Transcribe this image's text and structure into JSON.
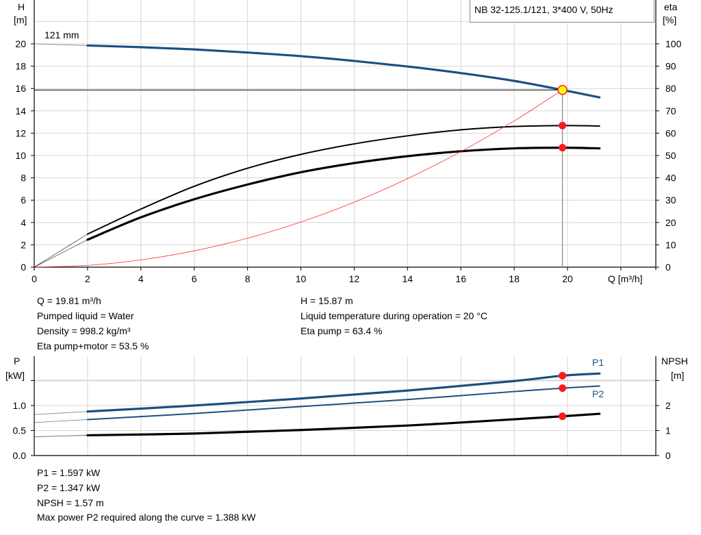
{
  "chart_data": [
    {
      "type": "line",
      "title": "NB 32-125.1/121, 3*400 V, 50Hz",
      "annotation": "121 mm",
      "xlabel": "Q [m³/h]",
      "ylabel": "H",
      "ylabel_unit": "[m]",
      "y2label": "eta",
      "y2label_unit": "[%]",
      "xlim": [
        0,
        23.3
      ],
      "ylim": [
        0,
        24
      ],
      "y2lim": [
        0,
        120
      ],
      "x_ticks": [
        "0",
        "2",
        "4",
        "6",
        "8",
        "10",
        "12",
        "14",
        "16",
        "18",
        "20"
      ],
      "y_ticks": [
        "0",
        "2",
        "4",
        "6",
        "8",
        "10",
        "12",
        "14",
        "16",
        "18",
        "20"
      ],
      "y2_ticks": [
        "0",
        "10",
        "20",
        "30",
        "40",
        "50",
        "60",
        "70",
        "80",
        "90",
        "100"
      ],
      "grid": true,
      "series": [
        {
          "id": "head",
          "axis": "left",
          "color": "#1b4f80",
          "solid_from_q": 2,
          "points": [
            [
              0,
              20.0
            ],
            [
              2,
              19.85
            ],
            [
              4,
              19.7
            ],
            [
              6,
              19.5
            ],
            [
              8,
              19.22
            ],
            [
              10,
              18.9
            ],
            [
              12,
              18.47
            ],
            [
              14,
              17.97
            ],
            [
              16,
              17.38
            ],
            [
              18,
              16.68
            ],
            [
              19.81,
              15.87
            ],
            [
              21.2,
              15.2
            ]
          ]
        },
        {
          "id": "eta-pump",
          "axis": "right",
          "color": "#000000",
          "solid_from_q": 2,
          "points": [
            [
              0,
              0
            ],
            [
              2,
              14.8
            ],
            [
              4,
              26
            ],
            [
              6,
              36.2
            ],
            [
              8,
              44.3
            ],
            [
              10,
              50.5
            ],
            [
              12,
              55.2
            ],
            [
              14,
              58.8
            ],
            [
              16,
              61.5
            ],
            [
              18,
              63.0
            ],
            [
              19.81,
              63.4
            ],
            [
              21.2,
              63.2
            ]
          ]
        },
        {
          "id": "eta-pump-motor",
          "axis": "right",
          "color": "#000000",
          "solid_from_q": 2,
          "thick": true,
          "points": [
            [
              0,
              0
            ],
            [
              2,
              12.3
            ],
            [
              4,
              22.3
            ],
            [
              6,
              30.4
            ],
            [
              8,
              37.0
            ],
            [
              10,
              42.5
            ],
            [
              12,
              46.6
            ],
            [
              14,
              49.7
            ],
            [
              16,
              51.9
            ],
            [
              18,
              53.2
            ],
            [
              19.81,
              53.5
            ],
            [
              21.2,
              53.2
            ]
          ]
        },
        {
          "id": "system-curve",
          "axis": "left",
          "color": "#ff2a2a",
          "points": [
            [
              0,
              0
            ],
            [
              2,
              0.16
            ],
            [
              4,
              0.65
            ],
            [
              6,
              1.46
            ],
            [
              8,
              2.59
            ],
            [
              10,
              4.04
            ],
            [
              12,
              5.82
            ],
            [
              14,
              7.93
            ],
            [
              16,
              10.35
            ],
            [
              18,
              13.1
            ],
            [
              19.81,
              15.87
            ]
          ]
        }
      ],
      "operating_point": {
        "q": 19.81,
        "h": 15.87,
        "eta_pump": 63.4,
        "eta_pump_motor": 53.5
      }
    },
    {
      "type": "line",
      "ylabel": "P",
      "ylabel_unit": "[kW]",
      "y2label": "NPSH",
      "y2label_unit": "[m]",
      "xlim": [
        0,
        23.3
      ],
      "ylim": [
        0,
        1.9
      ],
      "y2lim": [
        0,
        3.8
      ],
      "y_ticks": [
        "0.0",
        "0.5",
        "1.0"
      ],
      "y2_ticks": [
        "0",
        "1",
        "2"
      ],
      "grid": true,
      "series": [
        {
          "id": "P1",
          "name": "P1",
          "axis": "left",
          "color": "#1b4f80",
          "solid_from_q": 2,
          "thick": true,
          "points": [
            [
              0,
              0.82
            ],
            [
              2,
              0.88
            ],
            [
              6,
              1.0
            ],
            [
              10,
              1.14
            ],
            [
              14,
              1.3
            ],
            [
              18,
              1.49
            ],
            [
              19.81,
              1.597
            ],
            [
              21.2,
              1.64
            ]
          ]
        },
        {
          "id": "P2",
          "name": "P2",
          "axis": "left",
          "color": "#1b4f80",
          "solid_from_q": 2,
          "points": [
            [
              0,
              0.66
            ],
            [
              2,
              0.72
            ],
            [
              6,
              0.84
            ],
            [
              10,
              0.98
            ],
            [
              14,
              1.12
            ],
            [
              18,
              1.28
            ],
            [
              19.81,
              1.347
            ],
            [
              21.2,
              1.39
            ]
          ]
        },
        {
          "id": "NPSH",
          "axis": "right",
          "color": "#000000",
          "solid_from_q": 2,
          "thick": true,
          "points": [
            [
              0,
              0.75
            ],
            [
              2,
              0.81
            ],
            [
              6,
              0.88
            ],
            [
              10,
              1.02
            ],
            [
              14,
              1.2
            ],
            [
              18,
              1.45
            ],
            [
              19.81,
              1.57
            ],
            [
              21.2,
              1.67
            ]
          ]
        }
      ],
      "operating_point": {
        "q": 19.81,
        "p1": 1.597,
        "p2": 1.347,
        "npsh": 1.57
      }
    }
  ],
  "results_top": {
    "left": [
      "Q = 19.81 m³/h",
      "Pumped liquid = Water",
      "Density = 998.2 kg/m³",
      "Eta pump+motor = 53.5 %"
    ],
    "right": [
      "H = 15.87 m",
      "Liquid temperature during operation = 20 °C",
      "Eta pump = 63.4 %"
    ]
  },
  "results_bottom": [
    "P1 = 1.597 kW",
    "P2 = 1.347 kW",
    "NPSH = 1.57 m",
    "Max power P2 required along the curve = 1.388 kW"
  ]
}
